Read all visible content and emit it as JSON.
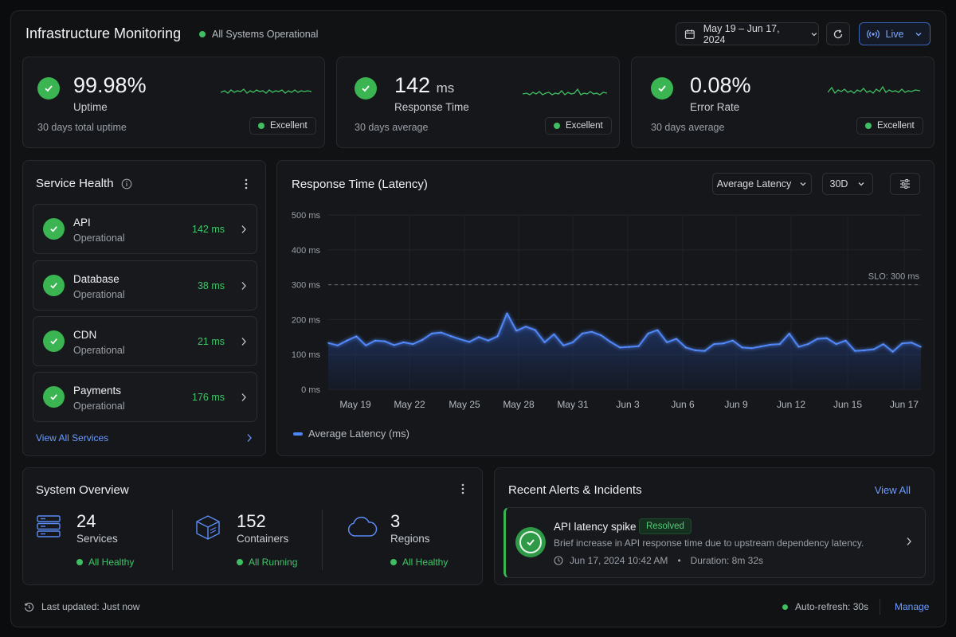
{
  "header": {
    "title": "Infrastructure Monitoring",
    "status": "All Systems Operational",
    "date_range": "May 19 – Jun 17, 2024",
    "live_label": "Live"
  },
  "kpis": [
    {
      "value": "99.98%",
      "unit": "",
      "label": "Uptime",
      "sub": "30 days total uptime",
      "badge": "Excellent"
    },
    {
      "value": "142",
      "unit": "ms",
      "label": "Response Time",
      "sub": "30 days average",
      "badge": "Excellent"
    },
    {
      "value": "0.08%",
      "unit": "",
      "label": "Error Rate",
      "sub": "30 days average",
      "badge": "Excellent"
    }
  ],
  "service_health": {
    "title": "Service Health",
    "items": [
      {
        "name": "API",
        "status": "Operational",
        "latency": "142 ms"
      },
      {
        "name": "Database",
        "status": "Operational",
        "latency": "38 ms"
      },
      {
        "name": "CDN",
        "status": "Operational",
        "latency": "21 ms"
      },
      {
        "name": "Payments",
        "status": "Operational",
        "latency": "176 ms"
      }
    ],
    "view_all": "View All Services"
  },
  "latency_panel": {
    "title": "Response Time (Latency)",
    "metric_select": "Average Latency",
    "range_select": "30D",
    "legend": "Average Latency (ms)",
    "slo_label": "SLO: 300 ms"
  },
  "chart_data": {
    "type": "area",
    "title": "Response Time (Latency)",
    "ylabel": "",
    "xlabel": "",
    "ylim": [
      0,
      500
    ],
    "y_ticks": [
      "500 ms",
      "400 ms",
      "300 ms",
      "200 ms",
      "100 ms",
      "0 ms"
    ],
    "x_ticks": [
      "May 19",
      "May 22",
      "May 25",
      "May 28",
      "May 31",
      "Jun 3",
      "Jun 6",
      "Jun 9",
      "Jun 12",
      "Jun 15",
      "Jun 17"
    ],
    "slo": 300,
    "grid": true,
    "series": [
      {
        "name": "Average Latency (ms)",
        "color": "#4f86f7",
        "values": [
          133,
          126,
          140,
          152,
          126,
          140,
          138,
          127,
          135,
          130,
          142,
          160,
          163,
          153,
          144,
          136,
          150,
          140,
          152,
          218,
          168,
          180,
          170,
          135,
          158,
          126,
          135,
          160,
          165,
          155,
          136,
          120,
          122,
          124,
          160,
          170,
          135,
          145,
          120,
          112,
          110,
          130,
          132,
          140,
          120,
          118,
          123,
          128,
          130,
          160,
          122,
          130,
          145,
          147,
          130,
          140,
          110,
          112,
          115,
          130,
          108,
          132,
          134,
          122
        ]
      }
    ]
  },
  "system_overview": {
    "title": "System Overview",
    "items": [
      {
        "value": "24",
        "label": "Services",
        "status": "All Healthy",
        "icon": "server-icon"
      },
      {
        "value": "152",
        "label": "Containers",
        "status": "All Running",
        "icon": "container-icon"
      },
      {
        "value": "3",
        "label": "Regions",
        "status": "All Healthy",
        "icon": "cloud-icon"
      }
    ]
  },
  "alerts": {
    "title": "Recent Alerts & Incidents",
    "view_all": "View All",
    "items": [
      {
        "title": "API latency spike",
        "badge": "Resolved",
        "description": "Brief increase in API response time due to upstream dependency latency.",
        "time": "Jun 17, 2024 10:42 AM",
        "duration": "Duration: 8m 32s"
      }
    ]
  },
  "footer": {
    "updated": "Last updated: Just now",
    "auto_refresh": "Auto-refresh: 30s",
    "manage": "Manage"
  }
}
